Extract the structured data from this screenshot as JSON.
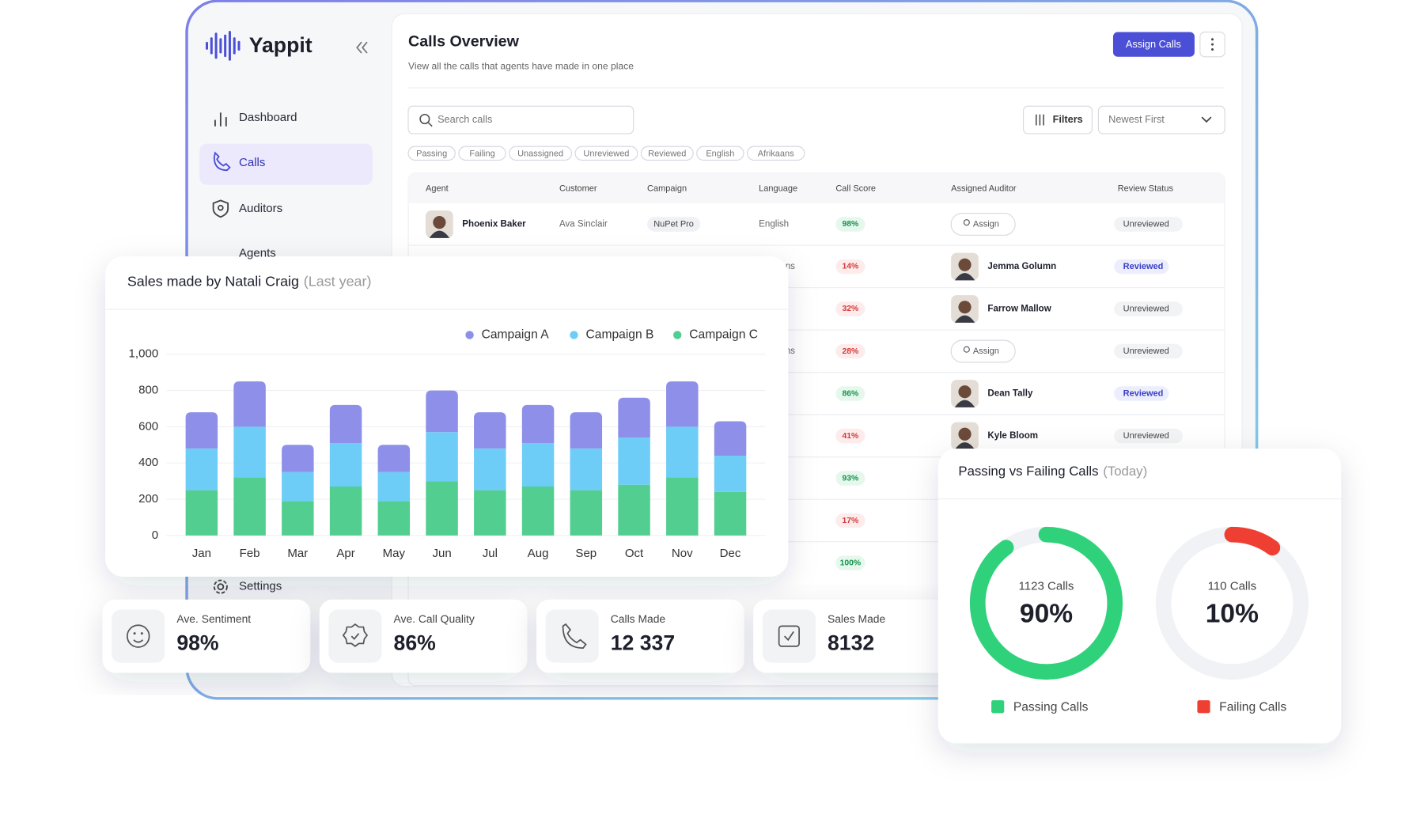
{
  "app": {
    "name": "Yappit",
    "nav": [
      "Dashboard",
      "Calls",
      "Auditors",
      "Agents",
      "Settings"
    ]
  },
  "header": {
    "title": "Calls Overview",
    "subtitle": "View all the calls that agents have made in one place",
    "button": "Assign Calls"
  },
  "filters": {
    "search": "Search calls",
    "filter_button": "Filters",
    "sort": "Newest First",
    "chips": [
      "Passing",
      "Failing",
      "Unassigned",
      "Unreviewed",
      "Reviewed",
      "English",
      "Afrikaans"
    ]
  },
  "table": {
    "columns": [
      "Agent",
      "Customer",
      "Campaign",
      "Language",
      "Call Score",
      "Assigned Auditor",
      "Review Status"
    ],
    "rows": [
      [
        "Phoenix Baker",
        "Ava Sinclair",
        "NuPet Pro",
        "English",
        "98%",
        {
          "button": "Assign"
        },
        "Unreviewed"
      ],
      [
        null,
        null,
        null,
        "ns",
        "14%",
        {
          "name": "Jemma Golumn"
        },
        "Reviewed"
      ],
      [
        null,
        null,
        null,
        null,
        "32%",
        {
          "name": "Farrow Mallow"
        },
        "Unreviewed"
      ],
      [
        null,
        null,
        null,
        "ns",
        "28%",
        {
          "button": "Assign"
        },
        "Unreviewed"
      ],
      [
        null,
        null,
        null,
        null,
        "86%",
        {
          "name": "Dean Tally"
        },
        "Reviewed"
      ],
      [
        null,
        null,
        null,
        null,
        "41%",
        {
          "name": "Kyle Bloom"
        },
        "Unreviewed"
      ],
      [
        null,
        null,
        null,
        null,
        "93%",
        null,
        null
      ],
      [
        null,
        null,
        null,
        null,
        "17%",
        null,
        null
      ],
      [
        null,
        null,
        null,
        null,
        "100%",
        null,
        null
      ]
    ]
  },
  "stats": [
    {
      "label": "Ave. Sentiment",
      "value": "98%"
    },
    {
      "label": "Ave. Call Quality",
      "value": "86%"
    },
    {
      "label": "Calls Made",
      "value": "12 337"
    },
    {
      "label": "Sales Made",
      "value": "8132"
    }
  ],
  "chart_data": [
    {
      "type": "bar",
      "stacked": true,
      "title": "Sales made by Natali Craig",
      "subtitle": "(Last year)",
      "categories": [
        "Jan",
        "Feb",
        "Mar",
        "Apr",
        "May",
        "Jun",
        "Jul",
        "Aug",
        "Sep",
        "Oct",
        "Nov",
        "Dec"
      ],
      "series": [
        {
          "name": "Campaign A",
          "color": "#8e8fe9",
          "values": [
            200,
            250,
            150,
            210,
            150,
            230,
            200,
            210,
            200,
            220,
            250,
            190
          ]
        },
        {
          "name": "Campaign B",
          "color": "#6dcdf6",
          "values": [
            230,
            280,
            160,
            240,
            160,
            270,
            230,
            240,
            230,
            260,
            280,
            200
          ]
        },
        {
          "name": "Campaign C",
          "color": "#52ce90",
          "values": [
            250,
            320,
            190,
            270,
            190,
            300,
            250,
            270,
            250,
            280,
            320,
            240
          ]
        }
      ],
      "ylim": [
        0,
        1000
      ],
      "yticks": [
        0,
        200,
        400,
        600,
        800,
        {
          "value": 1000,
          "label": "1,000"
        }
      ],
      "grid": true,
      "legend": "top-right"
    },
    {
      "type": "donut",
      "title": "Passing vs Failing Calls",
      "subtitle": "(Today)",
      "categories": [
        "Passing Calls",
        "Failing Calls"
      ],
      "values": [
        90,
        10
      ],
      "value_labels": [
        "90%",
        "10%"
      ],
      "count_labels": [
        "1123 Calls",
        "110 Calls"
      ],
      "colors": [
        "#2fd27a",
        "#ef3f33"
      ],
      "ylim": [
        0,
        100
      ]
    }
  ]
}
